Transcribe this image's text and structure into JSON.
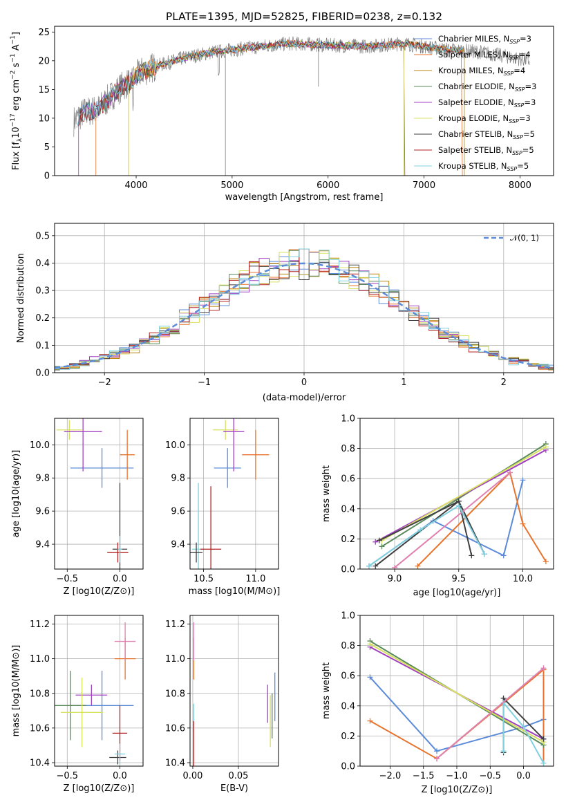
{
  "colors": {
    "Chabrier MILES": "#5b8bd9",
    "Salpeter MILES": "#e8732c",
    "Kroupa MILES": "#b8860b",
    "Chabrier ELODIE": "#5a8a5a",
    "Salpeter ELODIE": "#a040c0",
    "Kroupa ELODIE": "#d8e060",
    "Chabrier STELIB": "#404040",
    "Salpeter STELIB": "#b22222",
    "Kroupa STELIB": "#80d0e0",
    "extra_pink": "#e080b0",
    "normal_line": "#5b8bd9"
  },
  "chart_data": [
    {
      "id": "spectrum",
      "type": "line",
      "title": "PLATE=1395, MJD=52825, FIBERID=0238, z=0.132",
      "xlabel": "wavelength [Angstrom, rest frame]",
      "ylabel": "Flux [f",
      "ylabel_parts": [
        "Flux [f",
        "λ",
        "10",
        "−17",
        " erg cm",
        "−2",
        " s",
        "−1",
        " A",
        "−1",
        "]"
      ],
      "xlim": [
        3150,
        8350
      ],
      "ylim": [
        0,
        26
      ],
      "xticks": [
        "4000",
        "5000",
        "6000",
        "7000",
        "8000"
      ],
      "yticks": [
        "0",
        "5",
        "10",
        "15",
        "20",
        "25"
      ],
      "legend_position": "right",
      "legend": [
        {
          "label": "Chabrier MILES, N",
          "sub": "SSP",
          "suffix": "=3"
        },
        {
          "label": "Salpeter MILES, N",
          "sub": "SSP",
          "suffix": "=4"
        },
        {
          "label": "Kroupa MILES, N",
          "sub": "SSP",
          "suffix": "=4"
        },
        {
          "label": "Chabrier ELODIE, N",
          "sub": "SSP",
          "suffix": "=3"
        },
        {
          "label": "Salpeter ELODIE, N",
          "sub": "SSP",
          "suffix": "=3"
        },
        {
          "label": "Kroupa ELODIE, N",
          "sub": "SSP",
          "suffix": "=3"
        },
        {
          "label": "Chabrier STELIB, N",
          "sub": "SSP",
          "suffix": "=5"
        },
        {
          "label": "Salpeter STELIB, N",
          "sub": "SSP",
          "suffix": "=5"
        },
        {
          "label": "Kroupa STELIB, N",
          "sub": "SSP",
          "suffix": "=5"
        }
      ],
      "continuum": [
        [
          3350,
          9.5
        ],
        [
          3450,
          11.0
        ],
        [
          3600,
          11.5
        ],
        [
          3750,
          14.0
        ],
        [
          3850,
          15.5
        ],
        [
          3950,
          16.5
        ],
        [
          4050,
          18.0
        ],
        [
          4200,
          19.0
        ],
        [
          4500,
          20.5
        ],
        [
          4800,
          21.5
        ],
        [
          5200,
          22.3
        ],
        [
          5600,
          23.0
        ],
        [
          6000,
          22.7
        ],
        [
          6400,
          22.5
        ],
        [
          6800,
          23.0
        ],
        [
          7200,
          22.0
        ],
        [
          7600,
          21.5
        ],
        [
          8100,
          20.0
        ]
      ]
    },
    {
      "id": "residuals",
      "type": "step",
      "xlabel": "(data-model)/error",
      "ylabel": "Normed distribution",
      "xlim": [
        -2.5,
        2.5
      ],
      "ylim": [
        0,
        0.545
      ],
      "xticks": [
        "−2",
        "−1",
        "0",
        "1",
        "2"
      ],
      "yticks": [
        "0.0",
        "0.1",
        "0.2",
        "0.3",
        "0.4",
        "0.5"
      ],
      "legend": "𝒩(0, 1)",
      "bin_width": 0.1
    },
    {
      "id": "age_vs_Z",
      "type": "errorbar",
      "xlabel": "Z [log10(Z/Z⊙)]",
      "ylabel": "age  [log10(age/yr)]",
      "xlim": [
        -0.62,
        0.22
      ],
      "ylim": [
        9.25,
        10.16
      ],
      "xticks": [
        "−0.5",
        "0.0"
      ],
      "yticks": [
        "9.4",
        "9.6",
        "9.8",
        "10.0"
      ],
      "points": [
        {
          "x": -0.17,
          "xerr": 0.3,
          "y": 9.86,
          "yerr": 0.12
        },
        {
          "x": 0.07,
          "xerr": 0.07,
          "y": 9.94,
          "yerr": 0.15
        },
        {
          "x": -0.48,
          "xerr": 0.12,
          "y": 10.09,
          "yerr": 0.06
        },
        {
          "x": -0.35,
          "xerr": 0.18,
          "y": 10.08,
          "yerr": 0.24
        },
        {
          "x": 0.0,
          "xerr": 0.07,
          "y": 9.37,
          "yerr": 0.4
        },
        {
          "x": -0.02,
          "xerr": 0.1,
          "y": 9.35,
          "yerr": 0.06
        },
        {
          "x": 0.0,
          "xerr": 0.02,
          "y": 9.37,
          "yerr": 0.08
        }
      ]
    },
    {
      "id": "age_vs_mass",
      "type": "errorbar",
      "xlabel": "mass [log10(M/M⊙)]",
      "xlim": [
        10.37,
        11.22
      ],
      "ylim": [
        9.25,
        10.16
      ],
      "xticks": [
        "10.5",
        "11.0"
      ],
      "yticks": [
        "9.4",
        "9.6",
        "9.8",
        "10.0"
      ],
      "points": [
        {
          "x": 10.73,
          "xerr": 0.13,
          "y": 9.86,
          "yerr": 0.12
        },
        {
          "x": 11.0,
          "xerr": 0.13,
          "y": 9.94,
          "yerr": 0.15
        },
        {
          "x": 10.71,
          "xerr": 0.12,
          "y": 10.09,
          "yerr": 0.06
        },
        {
          "x": 10.79,
          "xerr": 0.1,
          "y": 10.08,
          "yerr": 0.24
        },
        {
          "x": 10.45,
          "xerr": 0.06,
          "y": 9.37,
          "yerr": 0.4
        },
        {
          "x": 10.57,
          "xerr": 0.1,
          "y": 9.37,
          "yerr": 0.38
        },
        {
          "x": 10.43,
          "xerr": 0.06,
          "y": 9.35,
          "yerr": 0.06
        }
      ]
    },
    {
      "id": "mass_weight_vs_age",
      "type": "line",
      "xlabel": "age  [log10(age/yr)]",
      "ylabel": "mass weight",
      "xlim": [
        8.73,
        10.24
      ],
      "ylim": [
        0,
        1
      ],
      "xticks": [
        "9.0",
        "9.5",
        "10.0"
      ],
      "yticks": [
        "0.0",
        "0.2",
        "0.4",
        "0.6",
        "0.8",
        "1.0"
      ],
      "series": [
        {
          "x": [
            8.8,
            9.3,
            9.85,
            10.0
          ],
          "y": [
            0.02,
            0.32,
            0.09,
            0.59
          ]
        },
        {
          "x": [
            9.18,
            9.9,
            10.0,
            10.18
          ],
          "y": [
            0.02,
            0.64,
            0.3,
            0.05
          ]
        },
        {
          "x": [
            8.85,
            9.5,
            9.7
          ],
          "y": [
            0.02,
            0.45,
            0.1
          ]
        },
        {
          "x": [
            8.9,
            10.18
          ],
          "y": [
            0.15,
            0.83
          ]
        },
        {
          "x": [
            8.85,
            10.18
          ],
          "y": [
            0.18,
            0.79
          ]
        },
        {
          "x": [
            8.9,
            10.18
          ],
          "y": [
            0.19,
            0.81
          ]
        },
        {
          "x": [
            8.88,
            9.5,
            9.6
          ],
          "y": [
            0.19,
            0.45,
            0.09
          ]
        },
        {
          "x": [
            9.0,
            9.9
          ],
          "y": [
            0.01,
            0.64
          ]
        },
        {
          "x": [
            8.8,
            9.2,
            9.5,
            9.7
          ],
          "y": [
            0.02,
            0.26,
            0.42,
            0.1
          ]
        }
      ]
    },
    {
      "id": "mass_vs_Z",
      "type": "errorbar",
      "xlabel": "Z [log10(Z/Z⊙)]",
      "ylabel": "mass [log10(M/M⊙)]",
      "xlim": [
        -0.62,
        0.22
      ],
      "ylim": [
        10.38,
        11.25
      ],
      "xticks": [
        "−0.5",
        "0.0"
      ],
      "yticks": [
        "10.4",
        "10.6",
        "10.8",
        "11.0",
        "11.2"
      ],
      "points": [
        {
          "x": -0.17,
          "xerr": 0.3,
          "y": 10.73,
          "yerr": 0.2
        },
        {
          "x": 0.05,
          "xerr": 0.1,
          "y": 11.0,
          "yerr": 0.12
        },
        {
          "x": 0.05,
          "xerr": 0.1,
          "y": 11.1,
          "yerr": 0.11
        },
        {
          "x": -0.47,
          "xerr": 0.15,
          "y": 10.73,
          "yerr": 0.2
        },
        {
          "x": -0.27,
          "xerr": 0.15,
          "y": 10.79,
          "yerr": 0.06
        },
        {
          "x": -0.36,
          "xerr": 0.2,
          "y": 10.69,
          "yerr": 0.2
        },
        {
          "x": 0.0,
          "xerr": 0.07,
          "y": 10.57,
          "yerr": 0.16
        },
        {
          "x": -0.02,
          "xerr": 0.08,
          "y": 10.43,
          "yerr": 0.04
        },
        {
          "x": 0.0,
          "xerr": 0.05,
          "y": 10.45,
          "yerr": 0.06
        }
      ]
    },
    {
      "id": "mass_vs_EBV",
      "type": "errorbar",
      "xlabel": "E(B-V)",
      "xlim": [
        -0.003,
        0.094
      ],
      "ylim": [
        10.38,
        11.25
      ],
      "xticks": [
        "0.00",
        "0.05"
      ],
      "yticks": [
        "10.4",
        "10.6",
        "10.8",
        "11.0",
        "11.2"
      ],
      "points": [
        {
          "x": 0.001,
          "y": 11.0,
          "yerr": 0.12
        },
        {
          "x": 0.001,
          "y": 11.1,
          "yerr": 0.11
        },
        {
          "x": 0.001,
          "y": 10.66,
          "yerr": 0.08
        },
        {
          "x": 0.001,
          "y": 10.5,
          "yerr": 0.14
        },
        {
          "x": 0.09,
          "y": 10.78,
          "yerr": 0.14
        },
        {
          "x": 0.087,
          "y": 10.67,
          "yerr": 0.13
        },
        {
          "x": 0.082,
          "y": 10.74,
          "yerr": 0.11
        },
        {
          "x": 0.085,
          "y": 10.64,
          "yerr": 0.15
        }
      ]
    },
    {
      "id": "mass_weight_vs_Z",
      "type": "line",
      "xlabel": "Z [log10(Z/Z⊙)]",
      "ylabel": "mass weight",
      "xlim": [
        -2.45,
        0.45
      ],
      "ylim": [
        0,
        1
      ],
      "xticks": [
        "−2.0",
        "−1.5",
        "−1.0",
        "−0.5",
        "0.0"
      ],
      "yticks": [
        "0.0",
        "0.2",
        "0.4",
        "0.6",
        "0.8",
        "1.0"
      ],
      "series": [
        {
          "x": [
            -2.3,
            -1.3,
            0.0,
            0.3
          ],
          "y": [
            0.59,
            0.1,
            0.26,
            0.31
          ]
        },
        {
          "x": [
            -2.3,
            -1.3,
            0.3,
            0.3
          ],
          "y": [
            0.3,
            0.05,
            0.64,
            0.02
          ]
        },
        {
          "x": [
            -2.3,
            0.3
          ],
          "y": [
            0.83,
            0.14
          ]
        },
        {
          "x": [
            -2.3,
            0.3
          ],
          "y": [
            0.79,
            0.18
          ]
        },
        {
          "x": [
            -2.3,
            0.3
          ],
          "y": [
            0.81,
            0.16
          ]
        },
        {
          "x": [
            -0.3,
            -0.3,
            0.3
          ],
          "y": [
            0.09,
            0.45,
            0.18
          ]
        },
        {
          "x": [
            -0.3,
            -0.3,
            0.0,
            0.3
          ],
          "y": [
            0.1,
            0.42,
            0.26,
            0.02
          ]
        },
        {
          "x": [
            -1.3,
            0.3
          ],
          "y": [
            0.05,
            0.65
          ]
        }
      ]
    }
  ]
}
